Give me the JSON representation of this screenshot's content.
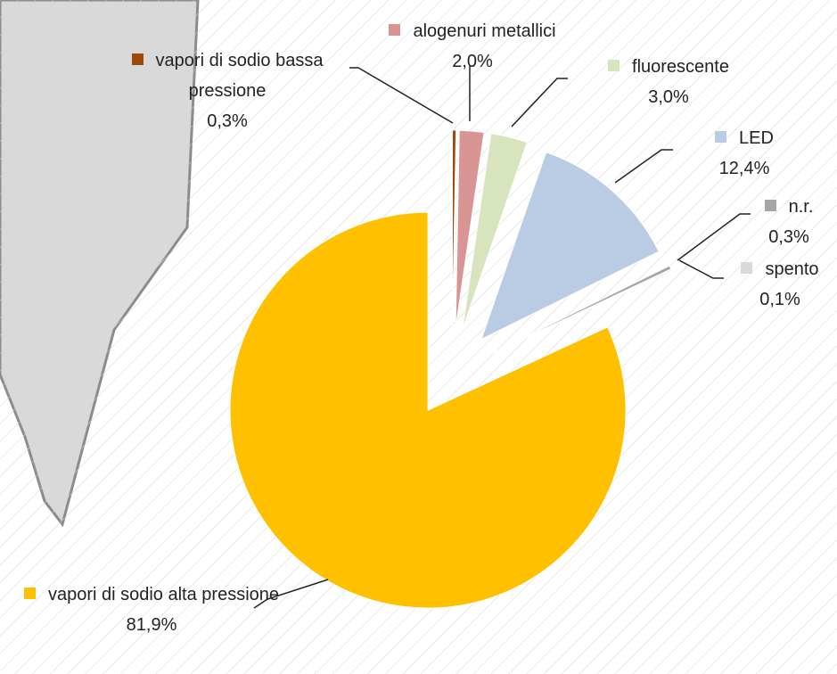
{
  "chart_data": {
    "type": "pie",
    "categories": [
      "vapori di sodio bassa pressione",
      "alogenuri metallici",
      "fluorescente",
      "LED",
      "n.r.",
      "spento",
      "vapori di sodio alta pressione"
    ],
    "values": [
      0.3,
      2.0,
      3.0,
      12.4,
      0.3,
      0.1,
      81.9
    ],
    "value_labels": [
      "0,3%",
      "2,0%",
      "3,0%",
      "12,4%",
      "0,3%",
      "0,1%",
      "81,9%"
    ],
    "colors": [
      "#9c4a0c",
      "#d99594",
      "#d7e4bd",
      "#b9cce4",
      "#a6a6a6",
      "#d9d9d9",
      "#ffc000"
    ]
  }
}
